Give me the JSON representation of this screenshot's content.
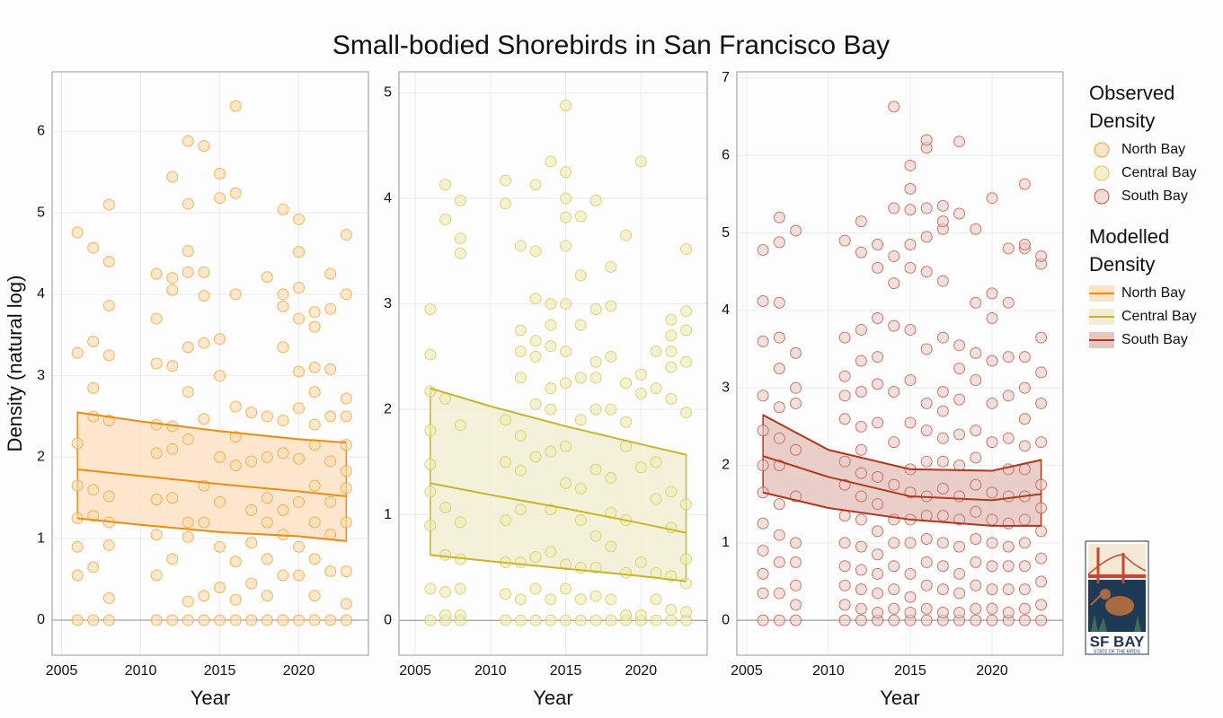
{
  "title": "Small-bodied Shorebirds in San Francisco Bay",
  "y_label": "Density (natural log)",
  "legend": {
    "observed_title": "Observed Density",
    "modelled_title": "Modelled Density"
  },
  "logo": {
    "title": "SF BAY",
    "subtitle": "STATE OF THE BIRDS"
  },
  "chart_data": [
    {
      "type": "scatter",
      "name": "North Bay",
      "x_label": "Year",
      "point_fill": "#fbdcae",
      "point_stroke": "#f0a43a",
      "line_color": "#ee8c10",
      "band_fill": "#fbe3c6",
      "xlim": [
        2004.4,
        2024.4
      ],
      "ylim": [
        -0.43,
        6.73
      ],
      "xticks": [
        2005,
        2010,
        2015,
        2020
      ],
      "yticks": [
        0,
        1,
        2,
        3,
        4,
        5,
        6
      ],
      "grid": true,
      "groups": [
        {
          "year": 2006,
          "values": [
            0,
            0.55,
            0.9,
            1.25,
            1.65,
            2.17,
            3.28,
            4.76
          ]
        },
        {
          "year": 2007,
          "values": [
            0,
            0.65,
            1.28,
            1.6,
            2.5,
            2.85,
            3.42,
            4.57
          ]
        },
        {
          "year": 2008,
          "values": [
            0,
            0.27,
            0.92,
            1.2,
            1.52,
            2.45,
            3.25,
            3.86,
            4.4,
            5.1
          ]
        },
        {
          "year": 2011,
          "values": [
            0,
            0.55,
            1.05,
            1.48,
            2.05,
            2.4,
            3.15,
            3.7,
            4.25
          ]
        },
        {
          "year": 2012,
          "values": [
            0,
            0.75,
            1.5,
            2.1,
            2.38,
            3.12,
            4.05,
            4.2,
            5.44
          ]
        },
        {
          "year": 2013,
          "values": [
            0,
            0.23,
            1.02,
            1.2,
            2.22,
            2.8,
            3.35,
            4.27,
            4.53,
            5.11,
            5.88
          ]
        },
        {
          "year": 2014,
          "values": [
            0,
            0.3,
            1.2,
            1.65,
            2.47,
            3.4,
            3.98,
            4.27,
            5.82
          ]
        },
        {
          "year": 2015,
          "values": [
            0,
            0.4,
            0.9,
            1.45,
            2.0,
            3.0,
            3.45,
            5.18,
            5.48
          ]
        },
        {
          "year": 2016,
          "values": [
            0,
            0.25,
            0.72,
            1.9,
            2.25,
            2.62,
            4.0,
            5.24,
            6.31
          ]
        },
        {
          "year": 2017,
          "values": [
            0,
            0.45,
            0.95,
            1.35,
            1.95,
            2.55
          ]
        },
        {
          "year": 2018,
          "values": [
            0,
            0.3,
            0.75,
            1.2,
            1.5,
            2.0,
            2.5,
            4.21
          ]
        },
        {
          "year": 2019,
          "values": [
            0,
            0.55,
            1.05,
            1.35,
            2.05,
            2.45,
            3.35,
            3.85,
            4.0,
            5.04
          ]
        },
        {
          "year": 2020,
          "values": [
            0,
            0.55,
            0.9,
            1.45,
            1.98,
            2.6,
            3.05,
            3.7,
            4.08,
            4.52,
            4.92
          ]
        },
        {
          "year": 2021,
          "values": [
            0,
            0.3,
            0.75,
            1.2,
            1.65,
            2.15,
            2.4,
            2.8,
            3.1,
            3.6,
            3.78
          ]
        },
        {
          "year": 2022,
          "values": [
            0,
            0.6,
            1.05,
            1.45,
            1.95,
            2.5,
            3.08,
            3.82,
            4.25
          ]
        },
        {
          "year": 2023,
          "values": [
            0,
            0.2,
            0.6,
            1.2,
            1.62,
            1.83,
            2.15,
            2.5,
            2.72,
            4.0,
            4.73
          ]
        }
      ],
      "band": {
        "x": [
          2006,
          2010,
          2015,
          2020,
          2023
        ],
        "mean": [
          1.85,
          1.77,
          1.67,
          1.58,
          1.52
        ],
        "upper": [
          2.55,
          2.44,
          2.32,
          2.22,
          2.18
        ],
        "lower": [
          1.25,
          1.17,
          1.08,
          1.03,
          0.97
        ]
      }
    },
    {
      "type": "scatter",
      "name": "Central Bay",
      "x_label": "Year",
      "point_fill": "#efebb8",
      "point_stroke": "#d6cb5a",
      "line_color": "#c5b62a",
      "band_fill": "#f2eed3",
      "xlim": [
        2003.92,
        2024.4
      ],
      "ylim": [
        -0.33,
        5.2
      ],
      "xticks": [
        2005,
        2010,
        2015,
        2020
      ],
      "yticks": [
        0,
        1,
        2,
        3,
        4,
        5
      ],
      "grid": true,
      "groups": [
        {
          "year": 2006,
          "values": [
            0,
            0.3,
            0.9,
            1.22,
            1.48,
            1.8,
            2.17,
            2.52,
            2.95
          ]
        },
        {
          "year": 2007,
          "values": [
            0,
            0.05,
            0.27,
            0.62,
            1.07,
            2.1,
            3.8,
            4.13
          ]
        },
        {
          "year": 2008,
          "values": [
            0,
            0.05,
            0.3,
            0.58,
            0.93,
            1.85,
            3.48,
            3.62,
            3.98
          ]
        },
        {
          "year": 2011,
          "values": [
            0,
            0.25,
            0.55,
            0.95,
            1.5,
            1.9,
            3.95,
            4.17
          ]
        },
        {
          "year": 2012,
          "values": [
            0,
            0.2,
            0.55,
            1.05,
            1.42,
            1.75,
            2.3,
            2.55,
            2.75,
            3.55
          ]
        },
        {
          "year": 2013,
          "values": [
            0,
            0.3,
            0.6,
            1.55,
            2.05,
            2.5,
            2.65,
            3.05,
            3.5,
            4.13
          ]
        },
        {
          "year": 2014,
          "values": [
            0,
            0.2,
            0.65,
            1.05,
            1.6,
            2.0,
            2.2,
            2.6,
            2.8,
            3.0,
            4.35
          ]
        },
        {
          "year": 2015,
          "values": [
            0,
            0.3,
            0.53,
            1.3,
            1.65,
            2.25,
            2.55,
            3.0,
            3.55,
            3.82,
            4.0,
            4.25,
            4.88
          ]
        },
        {
          "year": 2016,
          "values": [
            0,
            0.2,
            0.5,
            0.95,
            1.25,
            1.9,
            2.3,
            2.8,
            3.27,
            3.83
          ]
        },
        {
          "year": 2017,
          "values": [
            0,
            0.23,
            0.5,
            0.8,
            1.43,
            2.0,
            2.3,
            2.45,
            2.95,
            3.98
          ]
        },
        {
          "year": 2018,
          "values": [
            0,
            0.2,
            0.7,
            1.02,
            1.35,
            2.0,
            2.5,
            2.98,
            3.35
          ]
        },
        {
          "year": 2019,
          "values": [
            0,
            0.05,
            0.45,
            0.95,
            1.65,
            1.88,
            2.25,
            3.65
          ]
        },
        {
          "year": 2020,
          "values": [
            0,
            0.05,
            0.55,
            1.45,
            2.15,
            2.33,
            4.35
          ]
        },
        {
          "year": 2021,
          "values": [
            0,
            0.2,
            0.45,
            1.15,
            1.5,
            2.2,
            2.55
          ]
        },
        {
          "year": 2022,
          "values": [
            0,
            0.1,
            0.42,
            0.88,
            1.22,
            2.1,
            2.4,
            2.55,
            2.7,
            2.85
          ]
        },
        {
          "year": 2023,
          "values": [
            0,
            0.08,
            0.35,
            0.58,
            1.1,
            1.97,
            2.45,
            2.75,
            2.93,
            3.52
          ]
        }
      ],
      "band": {
        "x": [
          2006,
          2010,
          2015,
          2020,
          2023
        ],
        "mean": [
          1.3,
          1.19,
          1.06,
          0.92,
          0.83
        ],
        "upper": [
          2.2,
          2.03,
          1.84,
          1.67,
          1.57
        ],
        "lower": [
          0.62,
          0.56,
          0.49,
          0.42,
          0.37
        ]
      }
    },
    {
      "type": "scatter",
      "name": "South Bay",
      "x_label": "Year",
      "point_fill": "#edcdc8",
      "point_stroke": "#b65d4d",
      "line_color": "#b0391c",
      "band_fill": "#e6c6c1",
      "xlim": [
        2004.4,
        2024.34
      ],
      "ylim": [
        -0.45,
        7.08
      ],
      "xticks": [
        2005,
        2010,
        2015,
        2020
      ],
      "yticks": [
        0,
        1,
        2,
        3,
        4,
        5,
        6,
        7
      ],
      "grid": true,
      "groups": [
        {
          "year": 2006,
          "values": [
            0,
            0.35,
            0.6,
            0.9,
            1.25,
            1.65,
            2.0,
            2.45,
            2.9,
            3.6,
            4.12,
            4.78
          ]
        },
        {
          "year": 2007,
          "values": [
            0,
            0.35,
            0.75,
            1.1,
            1.5,
            2.0,
            2.35,
            2.75,
            3.25,
            3.65,
            4.1,
            4.88,
            5.2
          ]
        },
        {
          "year": 2008,
          "values": [
            0,
            0.2,
            0.45,
            0.75,
            1.0,
            1.6,
            2.2,
            2.8,
            3.0,
            3.45,
            5.03
          ]
        },
        {
          "year": 2011,
          "values": [
            0,
            0.2,
            0.45,
            0.7,
            1.0,
            1.35,
            1.75,
            2.05,
            2.6,
            2.9,
            3.15,
            3.65,
            4.9
          ]
        },
        {
          "year": 2012,
          "values": [
            0,
            0.15,
            0.4,
            0.65,
            0.95,
            1.3,
            1.6,
            1.9,
            2.2,
            2.5,
            2.95,
            3.35,
            3.75,
            4.75,
            5.15
          ]
        },
        {
          "year": 2013,
          "values": [
            0,
            0.1,
            0.35,
            0.6,
            0.85,
            1.15,
            1.5,
            1.85,
            2.55,
            3.05,
            3.4,
            3.9,
            4.55,
            4.85
          ]
        },
        {
          "year": 2014,
          "values": [
            0,
            0.15,
            0.4,
            0.7,
            1.0,
            1.3,
            1.75,
            2.3,
            2.95,
            3.8,
            4.35,
            4.7,
            5.32,
            6.63
          ]
        },
        {
          "year": 2015,
          "values": [
            0,
            0.1,
            0.3,
            0.6,
            1.0,
            1.3,
            1.65,
            1.95,
            2.55,
            3.1,
            3.75,
            4.55,
            4.85,
            5.3,
            5.57,
            5.87
          ]
        },
        {
          "year": 2016,
          "values": [
            0,
            0.15,
            0.45,
            0.75,
            1.05,
            1.35,
            1.6,
            2.05,
            2.45,
            2.8,
            3.5,
            4.5,
            4.95,
            5.32,
            6.1,
            6.2
          ]
        },
        {
          "year": 2017,
          "values": [
            0,
            0.1,
            0.4,
            0.7,
            1.0,
            1.35,
            1.7,
            2.05,
            2.35,
            2.7,
            2.95,
            3.65,
            4.38,
            5.05,
            5.15,
            5.35
          ]
        },
        {
          "year": 2018,
          "values": [
            0,
            0.1,
            0.35,
            0.6,
            0.95,
            1.3,
            1.6,
            2.0,
            2.4,
            2.85,
            3.25,
            3.55,
            5.25,
            6.18
          ]
        },
        {
          "year": 2019,
          "values": [
            0,
            0.15,
            0.45,
            0.75,
            1.05,
            1.4,
            1.75,
            2.1,
            2.45,
            3.1,
            3.45,
            4.1,
            5.05
          ]
        },
        {
          "year": 2020,
          "values": [
            0,
            0.15,
            0.4,
            0.7,
            1.0,
            1.3,
            1.65,
            2.3,
            2.8,
            3.35,
            3.9,
            4.22,
            5.45
          ]
        },
        {
          "year": 2021,
          "values": [
            0,
            0.1,
            0.4,
            0.7,
            0.95,
            1.25,
            1.6,
            1.95,
            2.35,
            2.9,
            3.4,
            4.1,
            4.8
          ]
        },
        {
          "year": 2022,
          "values": [
            0,
            0.15,
            0.4,
            0.7,
            1.0,
            1.3,
            1.6,
            1.95,
            2.25,
            2.6,
            3.0,
            3.4,
            4.8,
            4.85,
            5.63
          ]
        },
        {
          "year": 2023,
          "values": [
            0,
            0.2,
            0.5,
            0.8,
            1.15,
            1.45,
            1.75,
            2.3,
            2.8,
            3.2,
            3.65,
            4.6,
            4.7
          ]
        }
      ],
      "band": {
        "x": [
          2006,
          2010,
          2015,
          2020,
          2023
        ],
        "mean": [
          2.12,
          1.85,
          1.6,
          1.55,
          1.63
        ],
        "upper": [
          2.65,
          2.2,
          1.95,
          1.93,
          2.07
        ],
        "lower": [
          1.65,
          1.45,
          1.3,
          1.22,
          1.22
        ]
      }
    }
  ]
}
